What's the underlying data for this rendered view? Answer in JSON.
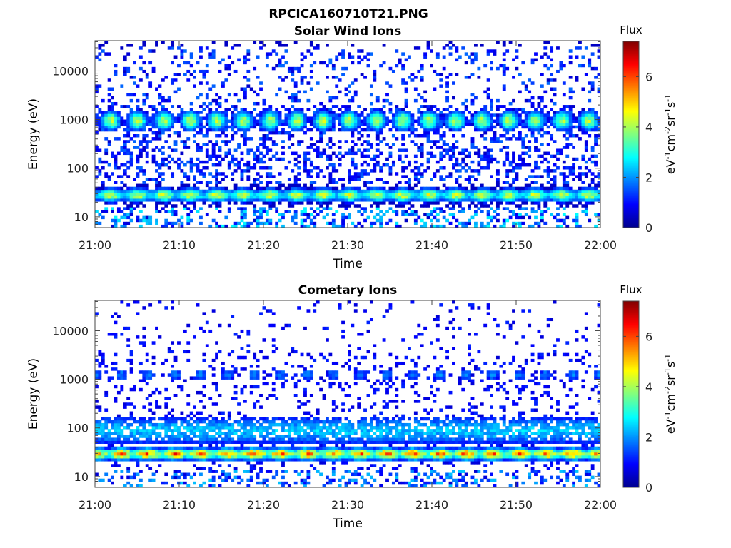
{
  "figure": {
    "title": "RPCICA160710T21.PNG"
  },
  "chart_data": [
    {
      "type": "heatmap",
      "title": "Solar Wind Ions",
      "xlabel": "Time",
      "ylabel": "Energy (eV)",
      "x_ticks": [
        "21:00",
        "21:10",
        "21:20",
        "21:30",
        "21:40",
        "21:50",
        "22:00"
      ],
      "xlim": [
        "21:00",
        "22:00"
      ],
      "y_scale": "log",
      "y_ticks": [
        10,
        100,
        1000,
        10000
      ],
      "ylim": [
        6,
        42000
      ],
      "colorbar": {
        "label": "Flux",
        "unit": "eV-1cm-2sr-1s-1",
        "range": [
          0,
          7.4
        ],
        "ticks": [
          0,
          2,
          4,
          6
        ],
        "colormap": "jet"
      },
      "bands": [
        {
          "energy_range_eV": [
            650,
            1500
          ],
          "flux_peak": 4.0,
          "modulation": "periodic, ~3 min"
        },
        {
          "energy_range_eV": [
            20,
            40
          ],
          "flux_peak": 4.3,
          "modulation": "periodic, ~3 min"
        },
        {
          "energy_range_eV": [
            6,
            15
          ],
          "flux_peak": 2.6,
          "modulation": "sparse"
        }
      ]
    },
    {
      "type": "heatmap",
      "title": "Cometary Ions",
      "xlabel": "Time",
      "ylabel": "Energy (eV)",
      "x_ticks": [
        "21:00",
        "21:10",
        "21:20",
        "21:30",
        "21:40",
        "21:50",
        "22:00"
      ],
      "xlim": [
        "21:00",
        "22:00"
      ],
      "y_scale": "log",
      "y_ticks": [
        10,
        100,
        1000,
        10000
      ],
      "ylim": [
        6,
        42000
      ],
      "colorbar": {
        "label": "Flux",
        "unit": "eV-1cm-2sr-1s-1",
        "range": [
          0,
          7.4
        ],
        "ticks": [
          0,
          2,
          4,
          6
        ],
        "colormap": "jet"
      },
      "bands": [
        {
          "energy_range_eV": [
            20,
            40
          ],
          "flux_peak": 5.8,
          "modulation": "periodic, ~3 min"
        },
        {
          "energy_range_eV": [
            50,
            200
          ],
          "flux_peak": 2.5,
          "modulation": "continuous"
        },
        {
          "energy_range_eV": [
            600,
            2000
          ],
          "flux_peak": 1.9,
          "modulation": "periodic, ~3 min"
        }
      ]
    }
  ]
}
